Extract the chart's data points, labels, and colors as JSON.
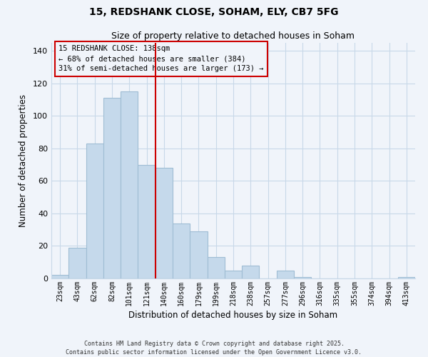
{
  "title": "15, REDSHANK CLOSE, SOHAM, ELY, CB7 5FG",
  "subtitle": "Size of property relative to detached houses in Soham",
  "xlabel": "Distribution of detached houses by size in Soham",
  "ylabel": "Number of detached properties",
  "categories": [
    "23sqm",
    "43sqm",
    "62sqm",
    "82sqm",
    "101sqm",
    "121sqm",
    "140sqm",
    "160sqm",
    "179sqm",
    "199sqm",
    "218sqm",
    "238sqm",
    "257sqm",
    "277sqm",
    "296sqm",
    "316sqm",
    "335sqm",
    "355sqm",
    "374sqm",
    "394sqm",
    "413sqm"
  ],
  "values": [
    2,
    19,
    83,
    111,
    115,
    70,
    68,
    34,
    29,
    13,
    5,
    8,
    0,
    5,
    1,
    0,
    0,
    0,
    0,
    0,
    1
  ],
  "bar_color": "#c5d9eb",
  "bar_edge_color": "#9fbdd4",
  "vline_x": 6,
  "vline_color": "#cc0000",
  "annotation_line1": "15 REDSHANK CLOSE: 138sqm",
  "annotation_line2": "← 68% of detached houses are smaller (384)",
  "annotation_line3": "31% of semi-detached houses are larger (173) →",
  "annotation_box_edge": "#cc0000",
  "ylim": [
    0,
    145
  ],
  "yticks": [
    0,
    20,
    40,
    60,
    80,
    100,
    120,
    140
  ],
  "footer1": "Contains HM Land Registry data © Crown copyright and database right 2025.",
  "footer2": "Contains public sector information licensed under the Open Government Licence v3.0.",
  "bg_color": "#f0f4fa",
  "grid_color": "#c8d8e8"
}
